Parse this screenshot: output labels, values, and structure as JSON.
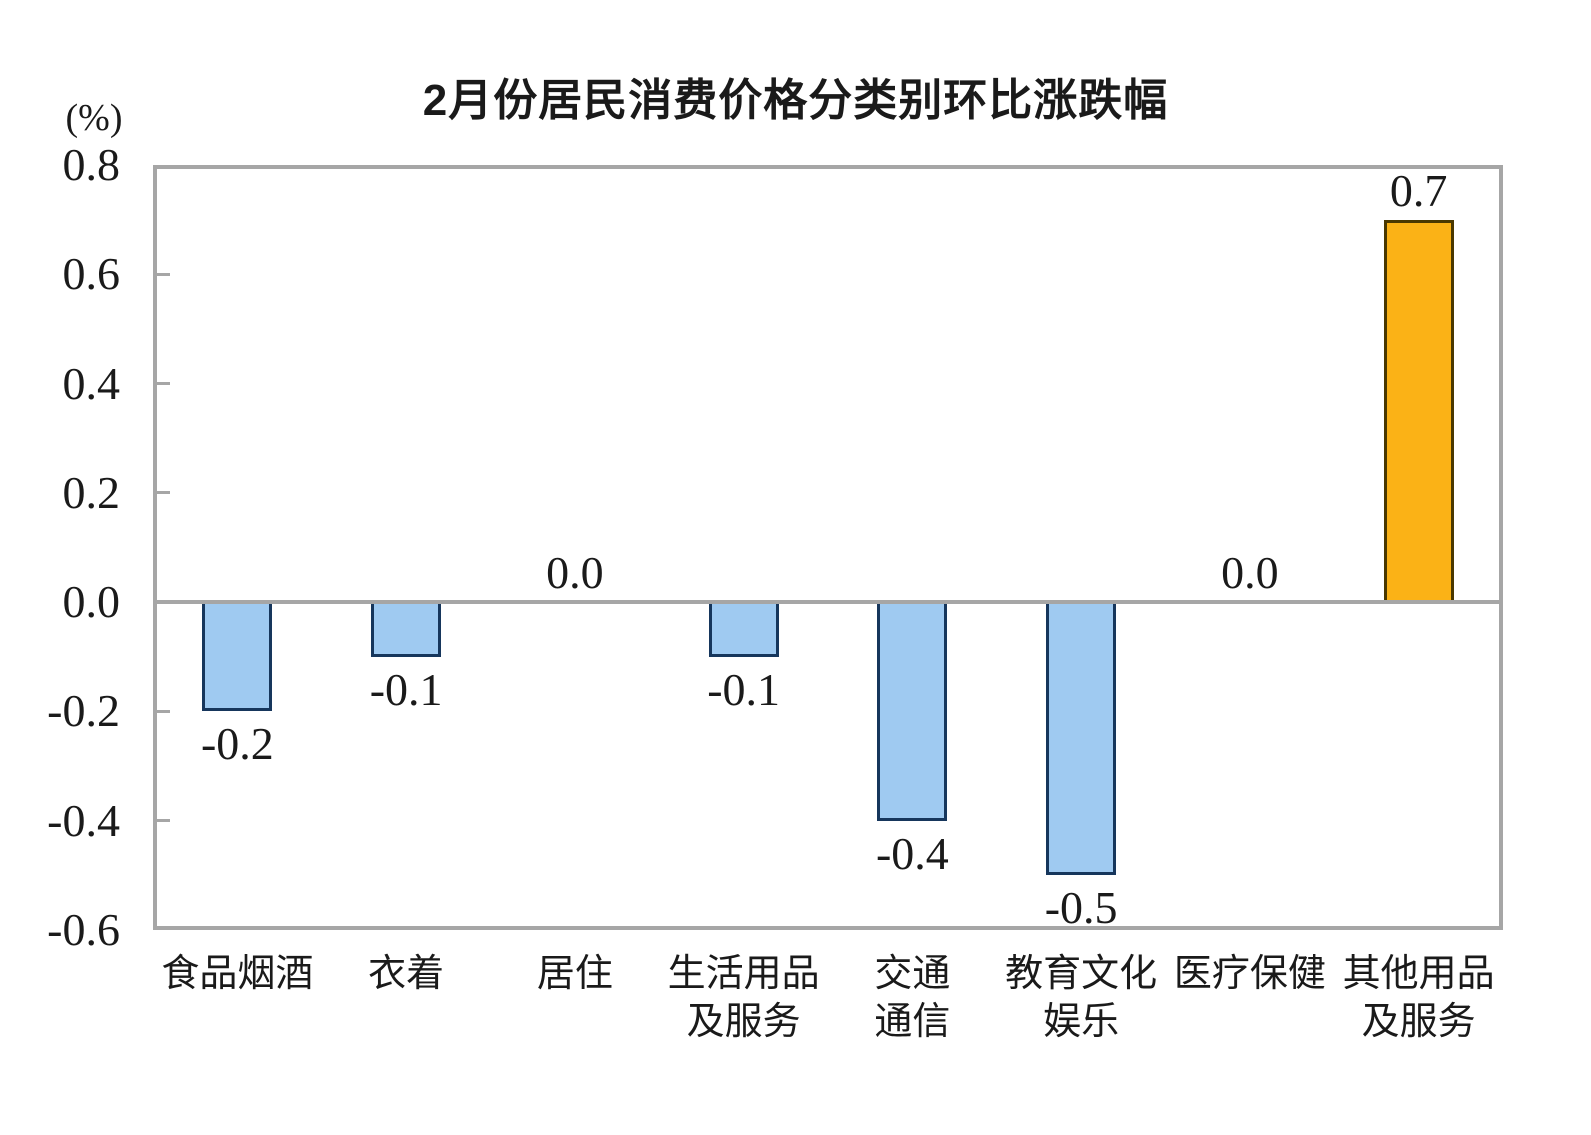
{
  "chart_data": {
    "type": "bar",
    "title": "2月份居民消费价格分类别环比涨跌幅",
    "unit_label": "(%)",
    "categories": [
      "食品烟酒",
      "衣着",
      "居住",
      "生活用品\n及服务",
      "交通\n通信",
      "教育文化\n娱乐",
      "医疗保健",
      "其他用品\n及服务"
    ],
    "values": [
      -0.2,
      -0.1,
      0.0,
      -0.1,
      -0.4,
      -0.5,
      0.0,
      0.7
    ],
    "value_labels": [
      "-0.2",
      "-0.1",
      "0.0",
      "-0.1",
      "-0.4",
      "-0.5",
      "0.0",
      "0.7"
    ],
    "bar_styles": [
      "default",
      "default",
      "default",
      "default",
      "default",
      "default",
      "default",
      "highlight"
    ],
    "ylim": [
      -0.6,
      0.8
    ],
    "ytick_step": 0.2,
    "yticks": [
      0.8,
      0.6,
      0.4,
      0.2,
      0.0,
      -0.2,
      -0.4,
      -0.6
    ],
    "ytick_labels": [
      "0.8",
      "0.6",
      "0.4",
      "0.2",
      "0.0",
      "-0.2",
      "-0.4",
      "-0.6"
    ],
    "grid": "off",
    "legend": "none",
    "colors": {
      "default_fill": "#9FCAF1",
      "default_border": "#16365C",
      "highlight_fill": "#FBB216",
      "highlight_border": "#4A3800",
      "axis": "#A6A6A6",
      "text": "#1A1A1A",
      "background": "#FFFFFF"
    }
  }
}
